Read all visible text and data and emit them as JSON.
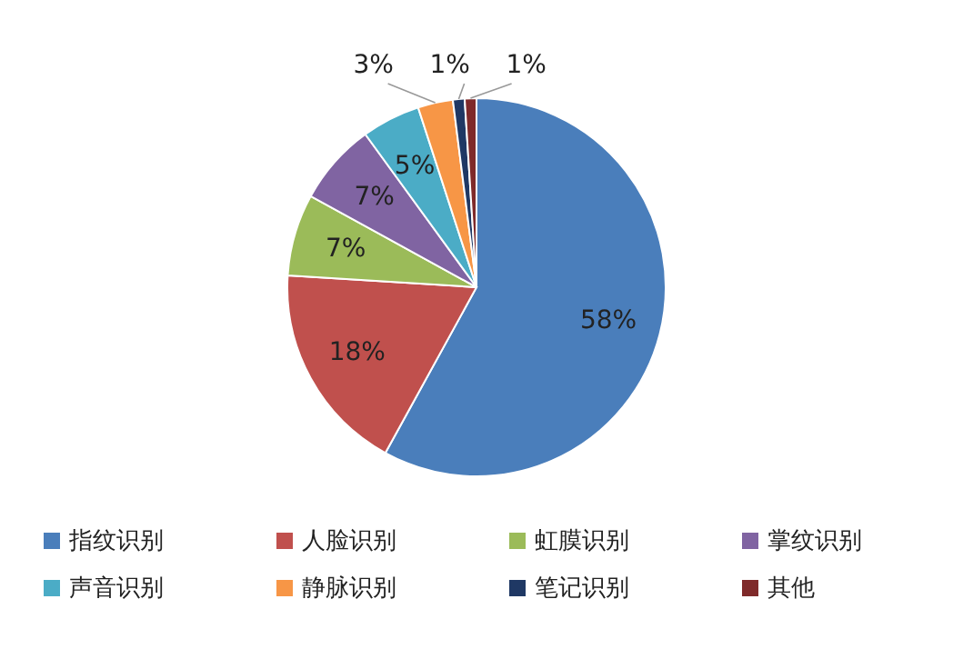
{
  "chart_data": {
    "type": "pie",
    "categories": [
      "指纹识别",
      "人脸识别",
      "虹膜识别",
      "掌纹识别",
      "声音识别",
      "静脉识别",
      "笔记识别",
      "其他"
    ],
    "values": [
      58,
      18,
      7,
      7,
      5,
      3,
      1,
      1
    ],
    "value_labels": [
      "58%",
      "18%",
      "7%",
      "7%",
      "5%",
      "3%",
      "1%",
      "1%"
    ],
    "colors": [
      "#4a7ebb",
      "#c0504d",
      "#9bbb59",
      "#8064a2",
      "#4bacc6",
      "#f79646",
      "#1f3864",
      "#7f2a2a"
    ],
    "legend": "bottom"
  }
}
